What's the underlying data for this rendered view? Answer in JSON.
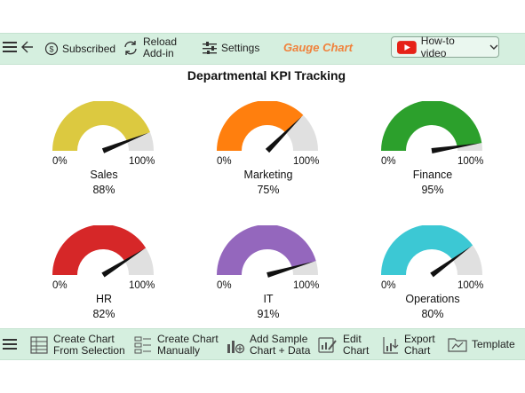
{
  "toolbar": {
    "subscribed": "Subscribed",
    "reload_line1": "Reload",
    "reload_line2": "Add-in",
    "settings": "Settings",
    "gauge_chart": "Gauge Chart",
    "howto": "How-to video",
    "accent_color": "#f0823c"
  },
  "bottom_toolbar": {
    "create_sel_1": "Create Chart",
    "create_sel_2": "From Selection",
    "create_man_1": "Create Chart",
    "create_man_2": "Manually",
    "add_sample_1": "Add Sample",
    "add_sample_2": "Chart + Data",
    "edit_1": "Edit",
    "edit_2": "Chart",
    "export_1": "Export",
    "export_2": "Chart",
    "template": "Template"
  },
  "chart_data": {
    "type": "gauge",
    "title": "Departmental KPI Tracking",
    "min_label": "0%",
    "max_label": "100%",
    "gauges": [
      {
        "name": "Sales",
        "value": 88,
        "label": "88%",
        "color": "#dcc940"
      },
      {
        "name": "Marketing",
        "value": 75,
        "label": "75%",
        "color": "#ff7f0e"
      },
      {
        "name": "Finance",
        "value": 95,
        "label": "95%",
        "color": "#2ca02c"
      },
      {
        "name": "HR",
        "value": 82,
        "label": "82%",
        "color": "#d62728"
      },
      {
        "name": "IT",
        "value": 91,
        "label": "91%",
        "color": "#9467bd"
      },
      {
        "name": "Operations",
        "value": 80,
        "label": "80%",
        "color": "#3cc8d4"
      }
    ],
    "remainder_color": "#e0e0e0",
    "needle_color": "#111111"
  }
}
